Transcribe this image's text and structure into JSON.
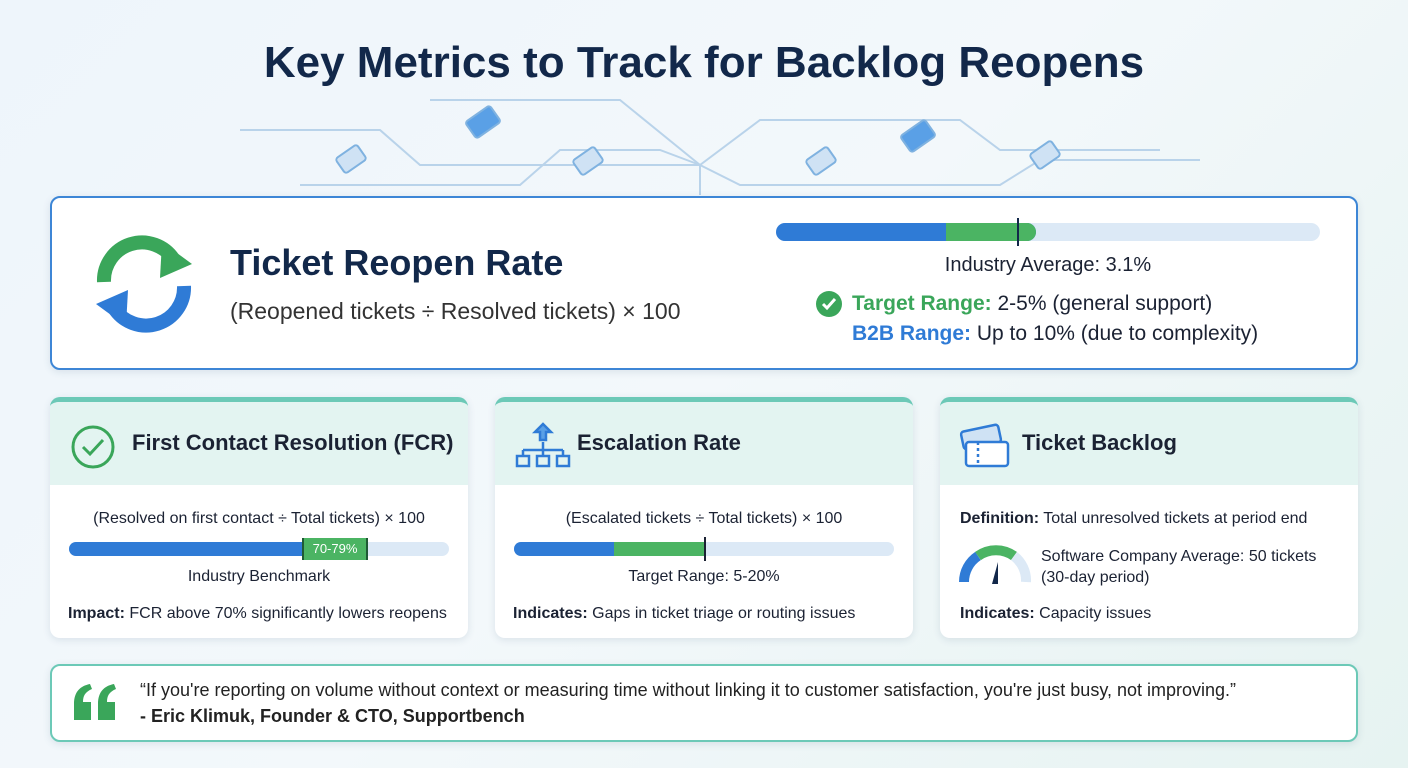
{
  "title": "Key Metrics to Track for Backlog Reopens",
  "hero": {
    "title": "Ticket Reopen Rate",
    "formula": "(Reopened tickets ÷ Resolved tickets) × 100",
    "benchmark": "Industry Average: 3.1%",
    "target": {
      "label": "Target Range:",
      "text": "2-5% (general support)"
    },
    "b2b": {
      "label": "B2B Range:",
      "text": "Up to 10% (due to complexity)"
    }
  },
  "cards": [
    {
      "title": "First Contact Resolution (FCR)",
      "formula": "(Resolved on first contact ÷ Total tickets) × 100",
      "bar_label": "70-79%",
      "caption": "Industry Benchmark",
      "note": {
        "label": "Impact:",
        "text": "FCR above 70% significantly lowers reopens"
      }
    },
    {
      "title": "Escalation Rate",
      "formula": "(Escalated tickets ÷ Total tickets) × 100",
      "caption": "Target Range: 5-20%",
      "note": {
        "label": "Indicates:",
        "text": "Gaps in ticket triage or routing issues"
      }
    },
    {
      "title": "Ticket Backlog",
      "definition": {
        "label": "Definition:",
        "text": "Total unresolved tickets at period end"
      },
      "stat": "Software Company Average: 50 tickets",
      "stat_sub": "(30-day period)",
      "note": {
        "label": "Indicates:",
        "text": "Capacity issues"
      }
    }
  ],
  "quote": {
    "text": "“If you're reporting on volume without context or measuring time without linking it to customer satisfaction, you're just busy, not improving.”",
    "attribution": "- Eric Klimuk, Founder & CTO, Supportbench"
  }
}
